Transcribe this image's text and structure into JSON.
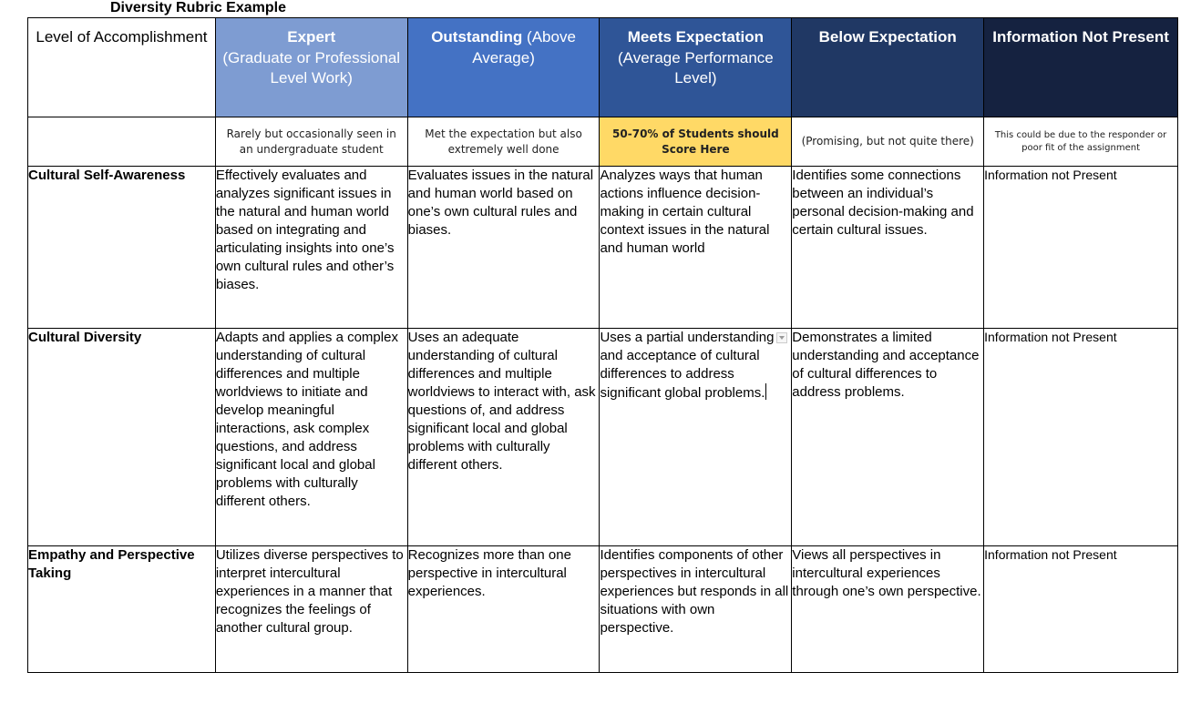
{
  "document": {
    "title": "Diversity Rubric Example"
  },
  "header": {
    "level_label": "Level of Accomplishment",
    "columns": [
      {
        "bold": "Expert",
        "rest": "(Graduate or Professional Level Work)"
      },
      {
        "bold": "Outstanding",
        "rest": " (Above Average)"
      },
      {
        "bold": "Meets Expectation",
        "rest": "(Average Performance Level)"
      },
      {
        "bold": "Below Expectation",
        "rest": ""
      },
      {
        "bold": "Information Not Present",
        "rest": ""
      }
    ],
    "colors": [
      "#7e9cd2",
      "#4472c4",
      "#2f5597",
      "#203864",
      "#152240"
    ]
  },
  "subheader": [
    "Rarely but occasionally seen in an undergraduate student",
    "Met the expectation but also extremely well done",
    "50-70% of Students should Score Here",
    "(Promising, but not quite there)",
    "This could be due to the responder or poor fit of the assignment"
  ],
  "rows": [
    {
      "label": "Cultural Self-Awareness",
      "cells": [
        "Effectively evaluates and analyzes significant issues in the natural and human world based on integrating and articulating insights into one’s own cultural rules and other’s biases.",
        "Evaluates issues in the natural and human world based on one’s own cultural rules and biases.",
        "Analyzes ways that human actions influence decision-making in certain cultural context issues in the natural and human world",
        "Identifies some connections between an individual’s personal decision-making and certain cultural issues.",
        "Information not Present"
      ]
    },
    {
      "label": "Cultural Diversity",
      "cells": [
        "Adapts and applies a complex understanding of cultural differences and multiple worldviews to initiate and develop meaningful interactions, ask complex questions, and address significant local and global problems with culturally different others.",
        "Uses an adequate understanding of cultural differences and multiple worldviews to interact with, ask questions of, and address significant local and global problems with culturally different others.",
        "Uses a partial understanding and acceptance of cultural differences to address significant global problems.",
        "Demonstrates a limited understanding and acceptance of cultural differences to address problems.",
        "Information not Present"
      ]
    },
    {
      "label": "Empathy and Perspective Taking",
      "cells": [
        "Utilizes diverse perspectives to interpret intercultural experiences in a manner that recognizes the feelings of another cultural group.",
        "Recognizes more than one perspective in intercultural experiences.",
        "Identifies components of other perspectives in intercultural experiences but responds in all situations with own perspective.",
        "Views all perspectives in intercultural experiences through one’s own perspective.",
        "Information not Present"
      ]
    }
  ]
}
